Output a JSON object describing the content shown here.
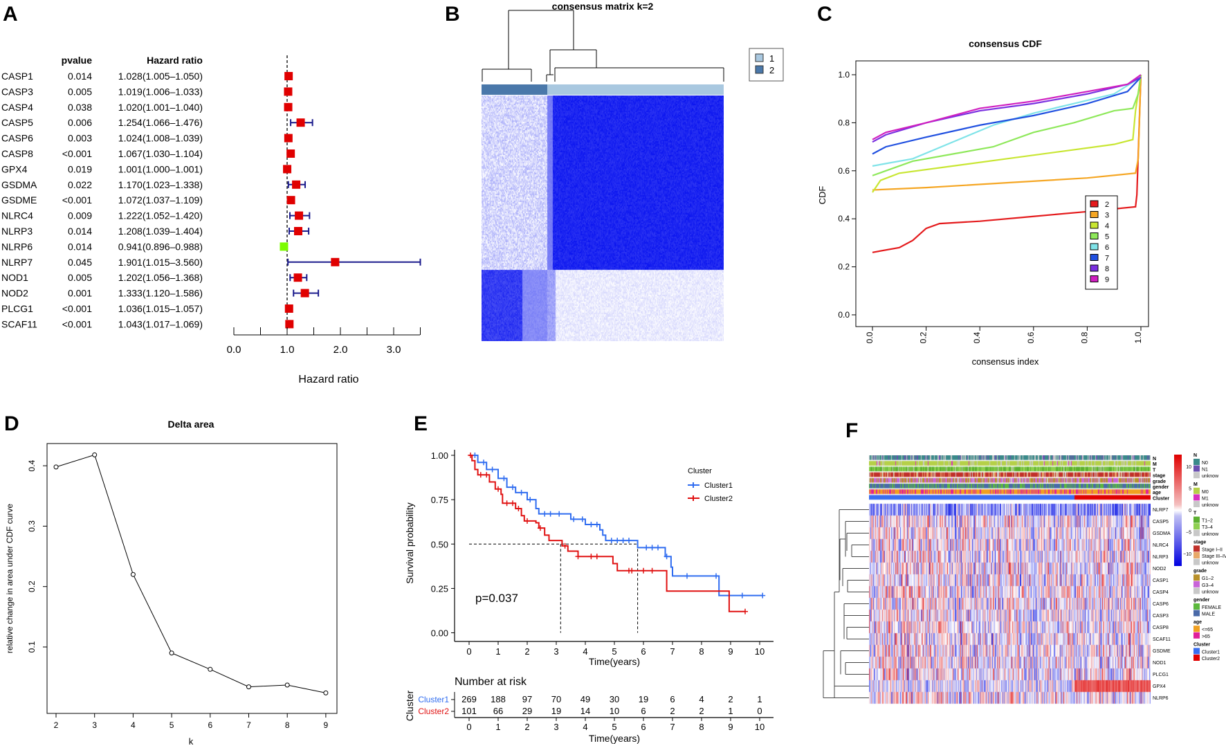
{
  "panel_labels": [
    "A",
    "B",
    "C",
    "D",
    "E",
    "F"
  ],
  "colors": {
    "red": "#e00000",
    "green": "#7cfc00",
    "navy": "#1a1a8c",
    "km_blue": "#2f6cf0",
    "km_red": "#e01010"
  },
  "chart_data": [
    {
      "type": "forest",
      "headers": {
        "pvalue": "pvalue",
        "hr": "Hazard ratio"
      },
      "xlabel": "Hazard ratio",
      "xticks": [
        "0.0",
        "1.0",
        "2.0",
        "3.0"
      ],
      "xlim": [
        0,
        3.5
      ],
      "rows": [
        {
          "gene": "CASP1",
          "pvalue": "0.014",
          "label": "1.028(1.005–1.050)",
          "hr": 1.028,
          "lo": 1.005,
          "hi": 1.05
        },
        {
          "gene": "CASP3",
          "pvalue": "0.005",
          "label": "1.019(1.006–1.033)",
          "hr": 1.019,
          "lo": 1.006,
          "hi": 1.033
        },
        {
          "gene": "CASP4",
          "pvalue": "0.038",
          "label": "1.020(1.001–1.040)",
          "hr": 1.02,
          "lo": 1.001,
          "hi": 1.04
        },
        {
          "gene": "CASP5",
          "pvalue": "0.006",
          "label": "1.254(1.066–1.476)",
          "hr": 1.254,
          "lo": 1.066,
          "hi": 1.476
        },
        {
          "gene": "CASP6",
          "pvalue": "0.003",
          "label": "1.024(1.008–1.039)",
          "hr": 1.024,
          "lo": 1.008,
          "hi": 1.039
        },
        {
          "gene": "CASP8",
          "pvalue": "<0.001",
          "label": "1.067(1.030–1.104)",
          "hr": 1.067,
          "lo": 1.03,
          "hi": 1.104
        },
        {
          "gene": "GPX4",
          "pvalue": "0.019",
          "label": "1.001(1.000–1.001)",
          "hr": 1.001,
          "lo": 1.0,
          "hi": 1.001
        },
        {
          "gene": "GSDMA",
          "pvalue": "0.022",
          "label": "1.170(1.023–1.338)",
          "hr": 1.17,
          "lo": 1.023,
          "hi": 1.338
        },
        {
          "gene": "GSDME",
          "pvalue": "<0.001",
          "label": "1.072(1.037–1.109)",
          "hr": 1.072,
          "lo": 1.037,
          "hi": 1.109
        },
        {
          "gene": "NLRC4",
          "pvalue": "0.009",
          "label": "1.222(1.052–1.420)",
          "hr": 1.222,
          "lo": 1.052,
          "hi": 1.42
        },
        {
          "gene": "NLRP3",
          "pvalue": "0.014",
          "label": "1.208(1.039–1.404)",
          "hr": 1.208,
          "lo": 1.039,
          "hi": 1.404
        },
        {
          "gene": "NLRP6",
          "pvalue": "0.014",
          "label": "0.941(0.896–0.988)",
          "hr": 0.941,
          "lo": 0.896,
          "hi": 0.988
        },
        {
          "gene": "NLRP7",
          "pvalue": "0.045",
          "label": "1.901(1.015–3.560)",
          "hr": 1.901,
          "lo": 1.015,
          "hi": 3.56
        },
        {
          "gene": "NOD1",
          "pvalue": "0.005",
          "label": "1.202(1.056–1.368)",
          "hr": 1.202,
          "lo": 1.056,
          "hi": 1.368
        },
        {
          "gene": "NOD2",
          "pvalue": "0.001",
          "label": "1.333(1.120–1.586)",
          "hr": 1.333,
          "lo": 1.12,
          "hi": 1.586
        },
        {
          "gene": "PLCG1",
          "pvalue": "<0.001",
          "label": "1.036(1.015–1.057)",
          "hr": 1.036,
          "lo": 1.015,
          "hi": 1.057
        },
        {
          "gene": "SCAF11",
          "pvalue": "<0.001",
          "label": "1.043(1.017–1.069)",
          "hr": 1.043,
          "lo": 1.017,
          "hi": 1.069
        }
      ]
    },
    {
      "type": "heatmap",
      "title": "consensus matrix k=2",
      "legend": [
        {
          "label": "1",
          "color": "#a9c8e0"
        },
        {
          "label": "2",
          "color": "#4a78aa"
        }
      ],
      "cluster_fraction": {
        "1": 0.73,
        "2": 0.27
      }
    },
    {
      "type": "line",
      "title": "consensus CDF",
      "xlabel": "consensus index",
      "ylabel": "CDF",
      "xticks": [
        "0.0",
        "0.2",
        "0.4",
        "0.6",
        "0.8",
        "1.0"
      ],
      "yticks": [
        "0.0",
        "0.2",
        "0.4",
        "0.6",
        "0.8",
        "1.0"
      ],
      "xlim": [
        0,
        1
      ],
      "ylim": [
        0,
        1
      ],
      "legend_position": "right",
      "series": [
        {
          "name": "2",
          "color": "#e41a1c",
          "points": [
            [
              0,
              0.26
            ],
            [
              0.1,
              0.28
            ],
            [
              0.15,
              0.31
            ],
            [
              0.2,
              0.36
            ],
            [
              0.25,
              0.38
            ],
            [
              0.4,
              0.39
            ],
            [
              0.6,
              0.41
            ],
            [
              0.8,
              0.43
            ],
            [
              0.98,
              0.45
            ],
            [
              0.985,
              0.5
            ],
            [
              1,
              1
            ]
          ]
        },
        {
          "name": "3",
          "color": "#f5a623",
          "points": [
            [
              0,
              0.52
            ],
            [
              0.2,
              0.53
            ],
            [
              0.5,
              0.55
            ],
            [
              0.8,
              0.57
            ],
            [
              0.98,
              0.59
            ],
            [
              0.99,
              0.65
            ],
            [
              1,
              1
            ]
          ]
        },
        {
          "name": "4",
          "color": "#c8e632",
          "points": [
            [
              0,
              0.51
            ],
            [
              0.03,
              0.56
            ],
            [
              0.1,
              0.59
            ],
            [
              0.3,
              0.62
            ],
            [
              0.5,
              0.65
            ],
            [
              0.7,
              0.68
            ],
            [
              0.9,
              0.71
            ],
            [
              0.97,
              0.73
            ],
            [
              0.98,
              0.85
            ],
            [
              1,
              1
            ]
          ]
        },
        {
          "name": "5",
          "color": "#8ee85a",
          "points": [
            [
              0,
              0.58
            ],
            [
              0.05,
              0.6
            ],
            [
              0.15,
              0.64
            ],
            [
              0.3,
              0.67
            ],
            [
              0.45,
              0.7
            ],
            [
              0.6,
              0.76
            ],
            [
              0.75,
              0.8
            ],
            [
              0.9,
              0.85
            ],
            [
              0.97,
              0.86
            ],
            [
              0.99,
              0.92
            ],
            [
              1,
              1
            ]
          ]
        },
        {
          "name": "6",
          "color": "#7fe3e8",
          "points": [
            [
              0,
              0.62
            ],
            [
              0.05,
              0.63
            ],
            [
              0.15,
              0.65
            ],
            [
              0.3,
              0.72
            ],
            [
              0.45,
              0.79
            ],
            [
              0.6,
              0.84
            ],
            [
              0.75,
              0.88
            ],
            [
              0.9,
              0.92
            ],
            [
              1,
              0.99
            ]
          ]
        },
        {
          "name": "7",
          "color": "#2050e0",
          "points": [
            [
              0,
              0.67
            ],
            [
              0.05,
              0.7
            ],
            [
              0.2,
              0.74
            ],
            [
              0.4,
              0.79
            ],
            [
              0.6,
              0.83
            ],
            [
              0.8,
              0.88
            ],
            [
              0.95,
              0.93
            ],
            [
              1,
              0.99
            ]
          ]
        },
        {
          "name": "8",
          "color": "#7a30e0",
          "points": [
            [
              0,
              0.72
            ],
            [
              0.05,
              0.75
            ],
            [
              0.2,
              0.8
            ],
            [
              0.4,
              0.85
            ],
            [
              0.6,
              0.88
            ],
            [
              0.8,
              0.92
            ],
            [
              0.95,
              0.96
            ],
            [
              1,
              0.99
            ]
          ]
        },
        {
          "name": "9",
          "color": "#d020c0",
          "points": [
            [
              0,
              0.73
            ],
            [
              0.05,
              0.76
            ],
            [
              0.2,
              0.8
            ],
            [
              0.4,
              0.86
            ],
            [
              0.6,
              0.89
            ],
            [
              0.8,
              0.93
            ],
            [
              0.95,
              0.96
            ],
            [
              1,
              1
            ]
          ]
        }
      ]
    },
    {
      "type": "line",
      "title": "Delta area",
      "xlabel": "k",
      "ylabel": "relative change in area under CDF curve",
      "x": [
        2,
        3,
        4,
        5,
        6,
        7,
        8,
        9
      ],
      "values": [
        0.398,
        0.418,
        0.22,
        0.09,
        0.063,
        0.034,
        0.037,
        0.024
      ],
      "xticks": [
        "2",
        "3",
        "4",
        "5",
        "6",
        "7",
        "8",
        "9"
      ],
      "yticks": [
        "0.1",
        "0.2",
        "0.3",
        "0.4"
      ]
    },
    {
      "type": "line",
      "subtype": "kaplan-meier",
      "xlabel": "Time(years)",
      "ylabel": "Survival probability",
      "xticks": [
        "0",
        "1",
        "2",
        "3",
        "4",
        "5",
        "6",
        "7",
        "8",
        "9",
        "10"
      ],
      "yticks": [
        "0.00",
        "0.25",
        "0.50",
        "0.75",
        "1.00"
      ],
      "pvalue": "p=0.037",
      "legend_title": "Cluster",
      "median_times": [
        3.15,
        5.8
      ],
      "series": [
        {
          "name": "Cluster1",
          "color": "#2f6cf0",
          "steps": [
            [
              0,
              1
            ],
            [
              0.3,
              0.96
            ],
            [
              0.6,
              0.92
            ],
            [
              1,
              0.87
            ],
            [
              1.3,
              0.82
            ],
            [
              1.6,
              0.79
            ],
            [
              2,
              0.75
            ],
            [
              2.3,
              0.7
            ],
            [
              2.4,
              0.67
            ],
            [
              3,
              0.67
            ],
            [
              3.5,
              0.64
            ],
            [
              4,
              0.61
            ],
            [
              4.5,
              0.58
            ],
            [
              4.6,
              0.55
            ],
            [
              4.7,
              0.52
            ],
            [
              5.8,
              0.48
            ],
            [
              6.75,
              0.43
            ],
            [
              6.95,
              0.37
            ],
            [
              7,
              0.32
            ],
            [
              8.6,
              0.21
            ],
            [
              10.1,
              0.21
            ]
          ],
          "censor": [
            0.2,
            0.5,
            0.8,
            1.2,
            1.5,
            1.8,
            2.1,
            2.6,
            2.8,
            3.1,
            3.6,
            3.9,
            4.2,
            4.4,
            4.9,
            5.1,
            5.3,
            5.5,
            6.1,
            6.3,
            6.5,
            6.8,
            7.5,
            8.5,
            9.4,
            10.1
          ]
        },
        {
          "name": "Cluster2",
          "color": "#e01010",
          "steps": [
            [
              0,
              1
            ],
            [
              0.1,
              0.97
            ],
            [
              0.2,
              0.92
            ],
            [
              0.3,
              0.89
            ],
            [
              0.7,
              0.85
            ],
            [
              0.9,
              0.81
            ],
            [
              1.1,
              0.78
            ],
            [
              1.15,
              0.73
            ],
            [
              1.6,
              0.7
            ],
            [
              1.8,
              0.66
            ],
            [
              1.9,
              0.63
            ],
            [
              2.3,
              0.62
            ],
            [
              2.4,
              0.59
            ],
            [
              2.6,
              0.55
            ],
            [
              2.75,
              0.52
            ],
            [
              3.2,
              0.49
            ],
            [
              3.4,
              0.46
            ],
            [
              3.75,
              0.43
            ],
            [
              4.95,
              0.39
            ],
            [
              5.1,
              0.35
            ],
            [
              6.8,
              0.235
            ],
            [
              8.95,
              0.12
            ],
            [
              9.5,
              0.12
            ]
          ],
          "censor": [
            0.05,
            0.4,
            0.6,
            1.0,
            1.3,
            1.5,
            1.7,
            2.0,
            2.45,
            3.3,
            3.75,
            4.2,
            4.4,
            5.5,
            5.6,
            6.0,
            6.3,
            9.5
          ]
        }
      ],
      "risk_table": {
        "title": "Number at risk",
        "row_axis_label": "Cluster",
        "rows": [
          {
            "name": "Cluster1",
            "values": [
              "269",
              "188",
              "97",
              "70",
              "49",
              "30",
              "19",
              "6",
              "4",
              "2",
              "1"
            ]
          },
          {
            "name": "Cluster2",
            "values": [
              "101",
              "66",
              "29",
              "19",
              "14",
              "10",
              "6",
              "2",
              "2",
              "1",
              "0"
            ]
          }
        ]
      }
    },
    {
      "type": "heatmap",
      "annotation_rows": [
        "N",
        "M",
        "T",
        "stage",
        "grade",
        "gender",
        "age",
        "Cluster"
      ],
      "genes": [
        "NLRP7",
        "CASP5",
        "GSDMA",
        "NLRC4",
        "NLRP3",
        "NOD2",
        "CASP1",
        "CASP4",
        "CASP6",
        "CASP3",
        "CASP8",
        "SCAF11",
        "GSDME",
        "NOD1",
        "PLCG1",
        "GPX4",
        "NLRP6"
      ],
      "colorbar_ticks": [
        "10",
        "5",
        "0",
        "−5",
        "−10"
      ],
      "cluster_fraction": {
        "Cluster1": 0.73,
        "Cluster2": 0.27
      },
      "legend": [
        {
          "title": "N",
          "items": [
            {
              "label": "N0",
              "color": "#3a8a8a"
            },
            {
              "label": "N1",
              "color": "#6a4fb0"
            },
            {
              "label": "unknow",
              "color": "#c8c8c8"
            }
          ]
        },
        {
          "title": "M",
          "items": [
            {
              "label": "M0",
              "color": "#b5d048"
            },
            {
              "label": "M1",
              "color": "#d830c0"
            },
            {
              "label": "unknow",
              "color": "#c8c8c8"
            }
          ]
        },
        {
          "title": "T",
          "items": [
            {
              "label": "T1–2",
              "color": "#5cb030"
            },
            {
              "label": "T3–4",
              "color": "#8ed050"
            },
            {
              "label": "unknow",
              "color": "#c8c8c8"
            }
          ]
        },
        {
          "title": "stage",
          "items": [
            {
              "label": "Stage I–II",
              "color": "#c0302a"
            },
            {
              "label": "Stage III–IV",
              "color": "#e8a868"
            },
            {
              "label": "unknow",
              "color": "#c8c8c8"
            }
          ]
        },
        {
          "title": "grade",
          "items": [
            {
              "label": "G1–2",
              "color": "#b8902a"
            },
            {
              "label": "G3–4",
              "color": "#c864d8"
            },
            {
              "label": "unknow",
              "color": "#c8c8c8"
            }
          ]
        },
        {
          "title": "gender",
          "items": [
            {
              "label": "FEMALE",
              "color": "#5cb83c"
            },
            {
              "label": "MALE",
              "color": "#4a6aa8"
            }
          ]
        },
        {
          "title": "age",
          "items": [
            {
              "label": "<=65",
              "color": "#f0a020"
            },
            {
              "label": ">65",
              "color": "#e0209a"
            }
          ]
        },
        {
          "title": "Cluster",
          "items": [
            {
              "label": "Cluster1",
              "color": "#3a6ef0"
            },
            {
              "label": "Cluster2",
              "color": "#e00000"
            }
          ]
        }
      ]
    }
  ]
}
